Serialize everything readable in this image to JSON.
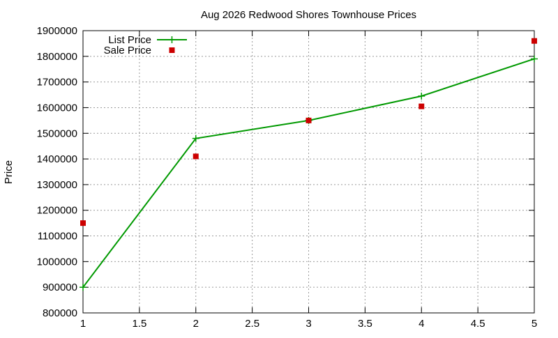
{
  "chart_data": {
    "type": "line",
    "title": "Aug 2026 Redwood Shores Townhouse Prices",
    "xlabel": "",
    "ylabel": "Price",
    "xlim": [
      1,
      5
    ],
    "ylim": [
      800000,
      1900000
    ],
    "xticks": [
      1,
      1.5,
      2,
      2.5,
      3,
      3.5,
      4,
      4.5,
      5
    ],
    "xtick_labels": [
      "1",
      "1.5",
      "2",
      "2.5",
      "3",
      "3.5",
      "4",
      "4.5",
      "5"
    ],
    "yticks": [
      800000,
      900000,
      1000000,
      1100000,
      1200000,
      1300000,
      1400000,
      1500000,
      1600000,
      1700000,
      1800000,
      1900000
    ],
    "ytick_labels": [
      "800000",
      "900000",
      "1000000",
      "1100000",
      "1200000",
      "1300000",
      "1400000",
      "1500000",
      "1600000",
      "1700000",
      "1800000",
      "1900000"
    ],
    "grid": true,
    "legend_position": "top-left",
    "series": [
      {
        "name": "List Price",
        "style": "linespoints",
        "marker": "plus",
        "color": "#009900",
        "x": [
          1,
          2,
          3,
          4,
          5
        ],
        "y": [
          900000,
          1480000,
          1550000,
          1645000,
          1790000
        ]
      },
      {
        "name": "Sale Price",
        "style": "points",
        "marker": "square",
        "color": "#cc0000",
        "x": [
          1,
          2,
          3,
          4,
          5
        ],
        "y": [
          1150000,
          1410000,
          1550000,
          1605000,
          1860000
        ]
      }
    ]
  }
}
